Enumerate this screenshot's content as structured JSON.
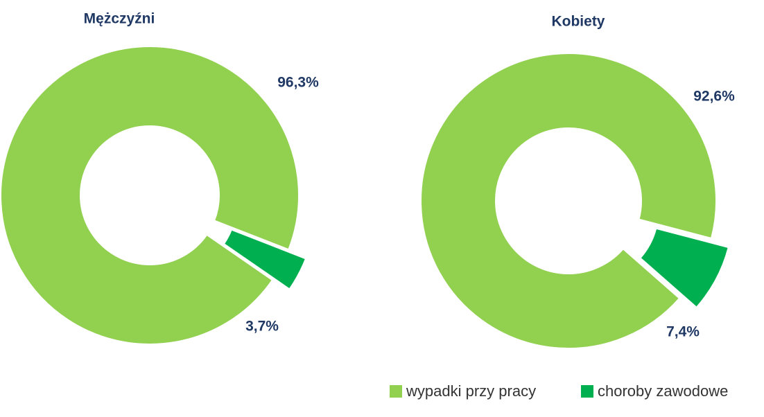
{
  "chart_data": [
    {
      "type": "donut",
      "title": "Mężczyźni",
      "values": [
        96.3,
        3.7
      ],
      "value_labels": [
        "96,3%",
        "3,7%"
      ]
    },
    {
      "type": "donut",
      "title": "Kobiety",
      "values": [
        92.6,
        7.4
      ],
      "value_labels": [
        "92,6%",
        "7,4%"
      ]
    }
  ],
  "legend": [
    {
      "name": "wypadki przy pracy",
      "color": "#92d050"
    },
    {
      "name": "choroby zawodowe",
      "color": "#00b050"
    }
  ]
}
